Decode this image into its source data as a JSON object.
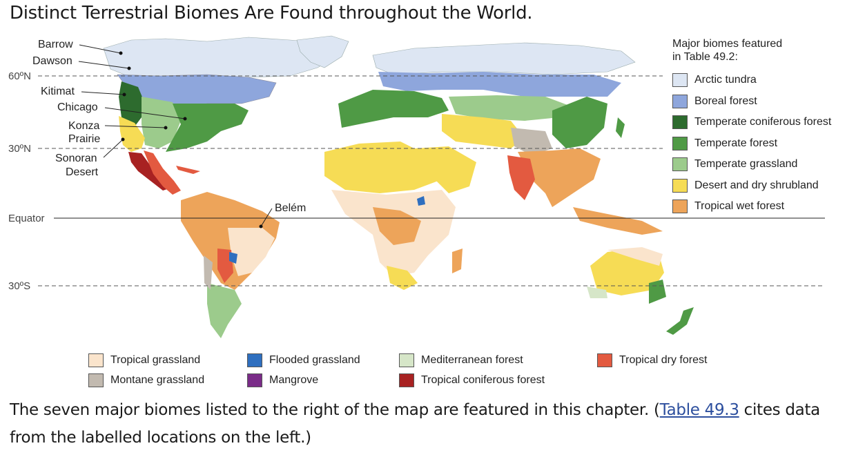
{
  "title": "Distinct Terrestrial Biomes Are Found throughout the World.",
  "colors": {
    "arctic_tundra": "#dde6f3",
    "boreal_forest": "#8ea6dc",
    "temperate_coniferous_forest": "#2d6b2e",
    "temperate_forest": "#4f9a45",
    "temperate_grassland": "#9ccb8c",
    "desert": "#f6dc55",
    "tropical_wet_forest": "#eda45a",
    "tropical_grassland": "#fae4cc",
    "montane_grassland": "#c2bab0",
    "flooded_grassland": "#2f6fbf",
    "mangrove": "#7a2c88",
    "mediterranean_forest": "#d6e6c8",
    "tropical_coniferous_forest": "#a82222",
    "tropical_dry_forest": "#e35a40"
  },
  "latitudes": {
    "n60": "60ºN",
    "n30": "30ºN",
    "equator": "Equator",
    "s30": "30ºS"
  },
  "locations": {
    "barrow": "Barrow",
    "dawson": "Dawson",
    "kitimat": "Kitimat",
    "chicago": "Chicago",
    "konza_1": "Konza",
    "konza_2": "Prairie",
    "sonoran_1": "Sonoran",
    "sonoran_2": "Desert",
    "belem": "Belém"
  },
  "legend_right": {
    "heading_1": "Major biomes featured",
    "heading_2": "in Table 49.2:",
    "items": [
      {
        "label": "Arctic tundra",
        "color": "#dde6f3"
      },
      {
        "label": "Boreal forest",
        "color": "#8ea6dc"
      },
      {
        "label": "Temperate coniferous forest",
        "color": "#2d6b2e"
      },
      {
        "label": "Temperate forest",
        "color": "#4f9a45"
      },
      {
        "label": "Temperate grassland",
        "color": "#9ccb8c"
      },
      {
        "label": "Desert and dry shrubland",
        "color": "#f6dc55"
      },
      {
        "label": "Tropical wet forest",
        "color": "#eda45a"
      }
    ]
  },
  "legend_bottom": {
    "items": [
      {
        "label": "Tropical grassland",
        "color": "#fae4cc"
      },
      {
        "label": "Montane grassland",
        "color": "#c2bab0"
      },
      {
        "label": "Flooded grassland",
        "color": "#2f6fbf"
      },
      {
        "label": "Mangrove",
        "color": "#7a2c88"
      },
      {
        "label": "Mediterranean forest",
        "color": "#d6e6c8"
      },
      {
        "label": "Tropical coniferous forest",
        "color": "#a82222"
      },
      {
        "label": "Tropical dry forest",
        "color": "#e35a40"
      }
    ]
  },
  "caption": {
    "before": "The seven major biomes listed to the right of the map are featured in this chapter. (",
    "link": "Table 49.3",
    "after": " cites data from the labelled locations on the left.)"
  }
}
